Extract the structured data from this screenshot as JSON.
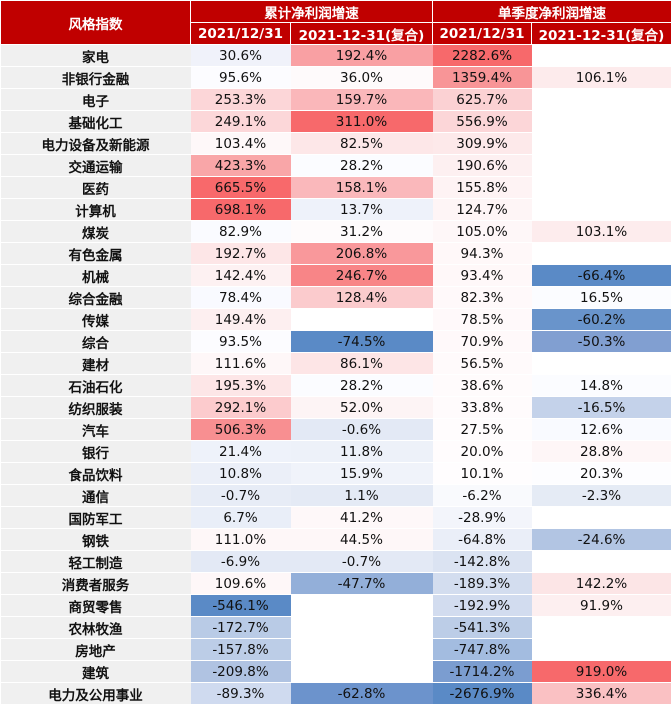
{
  "header": {
    "corner": "风格指数",
    "group1": "累计净利润增速",
    "group2": "单季度净利润增速",
    "sub": [
      "2021/12/31",
      "2021-12-31(复合)",
      "2021/12/31",
      "2021-12-31(复合)"
    ]
  },
  "rows": [
    {
      "name": "家电",
      "cells": [
        {
          "v": "30.6%",
          "bg": "#f0f2fa"
        },
        {
          "v": "192.4%",
          "bg": "#f9a0a3"
        },
        {
          "v": "2282.6%",
          "bg": "#f7696b"
        },
        {
          "v": "",
          "bg": "#ffffff"
        }
      ]
    },
    {
      "name": "非银行金融",
      "cells": [
        {
          "v": "95.6%",
          "bg": "#fcfcff"
        },
        {
          "v": "36.0%",
          "bg": "#fefafb"
        },
        {
          "v": "1359.4%",
          "bg": "#f89597"
        },
        {
          "v": "106.1%",
          "bg": "#fdebec"
        }
      ]
    },
    {
      "name": "电子",
      "cells": [
        {
          "v": "253.3%",
          "bg": "#fcd6d8"
        },
        {
          "v": "159.7%",
          "bg": "#fab7ba"
        },
        {
          "v": "625.7%",
          "bg": "#fbd1d3"
        },
        {
          "v": "",
          "bg": "#ffffff"
        }
      ]
    },
    {
      "name": "基础化工",
      "cells": [
        {
          "v": "249.1%",
          "bg": "#fcd7d9"
        },
        {
          "v": "311.0%",
          "bg": "#f7696b"
        },
        {
          "v": "556.9%",
          "bg": "#fcd6d8"
        },
        {
          "v": "",
          "bg": "#ffffff"
        }
      ]
    },
    {
      "name": "电力设备及新能源",
      "cells": [
        {
          "v": "103.4%",
          "bg": "#fef8f9"
        },
        {
          "v": "82.5%",
          "bg": "#fde7e8"
        },
        {
          "v": "309.9%",
          "bg": "#fde9ea"
        },
        {
          "v": "",
          "bg": "#ffffff"
        }
      ]
    },
    {
      "name": "交通运输",
      "cells": [
        {
          "v": "423.3%",
          "bg": "#f9a6a8"
        },
        {
          "v": "28.2%",
          "bg": "#fbfcff"
        },
        {
          "v": "190.6%",
          "bg": "#fdf0f1"
        },
        {
          "v": "",
          "bg": "#ffffff"
        }
      ]
    },
    {
      "name": "医药",
      "cells": [
        {
          "v": "665.5%",
          "bg": "#f8696b"
        },
        {
          "v": "158.1%",
          "bg": "#fab8bb"
        },
        {
          "v": "155.8%",
          "bg": "#fef3f4"
        },
        {
          "v": "",
          "bg": "#ffffff"
        }
      ]
    },
    {
      "name": "计算机",
      "cells": [
        {
          "v": "698.1%",
          "bg": "#f7696b"
        },
        {
          "v": "13.7%",
          "bg": "#eef2fa"
        },
        {
          "v": "124.7%",
          "bg": "#fef5f6"
        },
        {
          "v": "",
          "bg": "#ffffff"
        }
      ]
    },
    {
      "name": "煤炭",
      "cells": [
        {
          "v": "82.9%",
          "bg": "#fafbff"
        },
        {
          "v": "31.2%",
          "bg": "#fefbfc"
        },
        {
          "v": "105.0%",
          "bg": "#fef7f8"
        },
        {
          "v": "103.1%",
          "bg": "#fdeced"
        }
      ]
    },
    {
      "name": "有色金属",
      "cells": [
        {
          "v": "192.7%",
          "bg": "#fde6e7"
        },
        {
          "v": "206.8%",
          "bg": "#f9989b"
        },
        {
          "v": "94.3%",
          "bg": "#fff8f9"
        },
        {
          "v": "",
          "bg": "#ffffff"
        }
      ]
    },
    {
      "name": "机械",
      "cells": [
        {
          "v": "142.4%",
          "bg": "#fdf1f2"
        },
        {
          "v": "246.7%",
          "bg": "#f88587"
        },
        {
          "v": "93.4%",
          "bg": "#fff8f9"
        },
        {
          "v": "-66.4%",
          "bg": "#5a8ac6"
        }
      ]
    },
    {
      "name": "综合金融",
      "cells": [
        {
          "v": "78.4%",
          "bg": "#f9faff"
        },
        {
          "v": "128.4%",
          "bg": "#fbcbcd"
        },
        {
          "v": "82.3%",
          "bg": "#fff9fa"
        },
        {
          "v": "16.5%",
          "bg": "#fbfcff"
        }
      ]
    },
    {
      "name": "传媒",
      "cells": [
        {
          "v": "149.4%",
          "bg": "#fdeff0"
        },
        {
          "v": "",
          "bg": "#ffffff"
        },
        {
          "v": "78.5%",
          "bg": "#fff9fa"
        },
        {
          "v": "-60.2%",
          "bg": "#6994cb"
        }
      ]
    },
    {
      "name": "综合",
      "cells": [
        {
          "v": "93.5%",
          "bg": "#fcfcff"
        },
        {
          "v": "-74.5%",
          "bg": "#5a8ac6"
        },
        {
          "v": "70.9%",
          "bg": "#fff9fa"
        },
        {
          "v": "-50.3%",
          "bg": "#819fd1"
        }
      ]
    },
    {
      "name": "建材",
      "cells": [
        {
          "v": "111.6%",
          "bg": "#fef7f8"
        },
        {
          "v": "86.1%",
          "bg": "#fde5e6"
        },
        {
          "v": "56.5%",
          "bg": "#fffafb"
        },
        {
          "v": "",
          "bg": "#ffffff"
        }
      ]
    },
    {
      "name": "石油石化",
      "cells": [
        {
          "v": "195.3%",
          "bg": "#fde6e7"
        },
        {
          "v": "28.2%",
          "bg": "#fbfcff"
        },
        {
          "v": "38.6%",
          "bg": "#fffbfc"
        },
        {
          "v": "14.8%",
          "bg": "#fbfcff"
        }
      ]
    },
    {
      "name": "纺织服装",
      "cells": [
        {
          "v": "292.1%",
          "bg": "#fccbcd"
        },
        {
          "v": "52.0%",
          "bg": "#fdf4f5"
        },
        {
          "v": "33.8%",
          "bg": "#fffbfc"
        },
        {
          "v": "-16.5%",
          "bg": "#c4d2ea"
        }
      ]
    },
    {
      "name": "汽车",
      "cells": [
        {
          "v": "506.3%",
          "bg": "#f88f91"
        },
        {
          "v": "-0.6%",
          "bg": "#e3e9f5"
        },
        {
          "v": "27.5%",
          "bg": "#fffcfd"
        },
        {
          "v": "12.6%",
          "bg": "#f9faff"
        }
      ]
    },
    {
      "name": "银行",
      "cells": [
        {
          "v": "21.4%",
          "bg": "#eef2fa"
        },
        {
          "v": "11.8%",
          "bg": "#edf1f9"
        },
        {
          "v": "20.0%",
          "bg": "#fffcfd"
        },
        {
          "v": "28.8%",
          "bg": "#fef6f7"
        }
      ]
    },
    {
      "name": "食品饮料",
      "cells": [
        {
          "v": "10.8%",
          "bg": "#ebeff8"
        },
        {
          "v": "15.9%",
          "bg": "#f0f3fa"
        },
        {
          "v": "10.1%",
          "bg": "#fffdfe"
        },
        {
          "v": "20.3%",
          "bg": "#fdfdff"
        }
      ]
    },
    {
      "name": "通信",
      "cells": [
        {
          "v": "-0.7%",
          "bg": "#e7ecf6"
        },
        {
          "v": "1.1%",
          "bg": "#e4eaf5"
        },
        {
          "v": "-6.2%",
          "bg": "#f9fafd"
        },
        {
          "v": "-2.3%",
          "bg": "#e5ebf5"
        }
      ]
    },
    {
      "name": "国防军工",
      "cells": [
        {
          "v": "6.7%",
          "bg": "#e9eef8"
        },
        {
          "v": "41.2%",
          "bg": "#fef8f9"
        },
        {
          "v": "-28.9%",
          "bg": "#f3f5fb"
        },
        {
          "v": "",
          "bg": "#ffffff"
        }
      ]
    },
    {
      "name": "钢铁",
      "cells": [
        {
          "v": "111.0%",
          "bg": "#fef7f8"
        },
        {
          "v": "44.5%",
          "bg": "#fef7f8"
        },
        {
          "v": "-64.8%",
          "bg": "#eaeef8"
        },
        {
          "v": "-24.6%",
          "bg": "#b2c5e3"
        }
      ]
    },
    {
      "name": "轻工制造",
      "cells": [
        {
          "v": "-6.9%",
          "bg": "#e3e9f5"
        },
        {
          "v": "-0.7%",
          "bg": "#e3e9f5"
        },
        {
          "v": "-142.8%",
          "bg": "#dbe3f2"
        },
        {
          "v": "",
          "bg": "#ffffff"
        }
      ]
    },
    {
      "name": "消费者服务",
      "cells": [
        {
          "v": "109.6%",
          "bg": "#fef7f8"
        },
        {
          "v": "-47.7%",
          "bg": "#93afd9"
        },
        {
          "v": "-189.3%",
          "bg": "#d3ddef"
        },
        {
          "v": "142.2%",
          "bg": "#fce5e6"
        }
      ]
    },
    {
      "name": "商贸零售",
      "cells": [
        {
          "v": "-546.1%",
          "bg": "#5a8ac6"
        },
        {
          "v": "",
          "bg": "#ffffff"
        },
        {
          "v": "-192.9%",
          "bg": "#d2dcef"
        },
        {
          "v": "91.9%",
          "bg": "#fdeff0"
        }
      ]
    },
    {
      "name": "农林牧渔",
      "cells": [
        {
          "v": "-172.7%",
          "bg": "#b9cbe6"
        },
        {
          "v": "",
          "bg": "#ffffff"
        },
        {
          "v": "-541.3%",
          "bg": "#bccde7"
        },
        {
          "v": "",
          "bg": "#ffffff"
        }
      ]
    },
    {
      "name": "房地产",
      "cells": [
        {
          "v": "-157.8%",
          "bg": "#bccde7"
        },
        {
          "v": "",
          "bg": "#ffffff"
        },
        {
          "v": "-747.8%",
          "bg": "#a3bce0"
        },
        {
          "v": "",
          "bg": "#ffffff"
        }
      ]
    },
    {
      "name": "建筑",
      "cells": [
        {
          "v": "-209.8%",
          "bg": "#b0c3e2"
        },
        {
          "v": "",
          "bg": "#ffffff"
        },
        {
          "v": "-1714.2%",
          "bg": "#7b9dd0"
        },
        {
          "v": "919.0%",
          "bg": "#f7696b"
        }
      ]
    },
    {
      "name": "电力及公用事业",
      "cells": [
        {
          "v": "-89.3%",
          "bg": "#cfdaef"
        },
        {
          "v": "-62.8%",
          "bg": "#6c93cc"
        },
        {
          "v": "-2676.9%",
          "bg": "#5a8ac6"
        },
        {
          "v": "336.4%",
          "bg": "#fac1c3"
        }
      ]
    }
  ]
}
